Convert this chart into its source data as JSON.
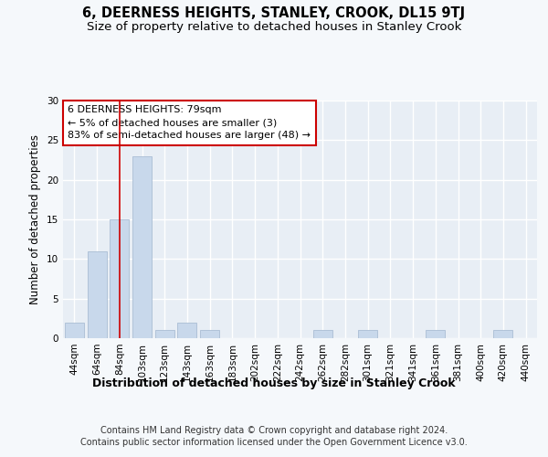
{
  "title": "6, DEERNESS HEIGHTS, STANLEY, CROOK, DL15 9TJ",
  "subtitle": "Size of property relative to detached houses in Stanley Crook",
  "xlabel": "Distribution of detached houses by size in Stanley Crook",
  "ylabel": "Number of detached properties",
  "bin_labels": [
    "44sqm",
    "64sqm",
    "84sqm",
    "103sqm",
    "123sqm",
    "143sqm",
    "163sqm",
    "183sqm",
    "202sqm",
    "222sqm",
    "242sqm",
    "262sqm",
    "282sqm",
    "301sqm",
    "321sqm",
    "341sqm",
    "361sqm",
    "381sqm",
    "400sqm",
    "420sqm",
    "440sqm"
  ],
  "bar_values": [
    2,
    11,
    15,
    23,
    1,
    2,
    1,
    0,
    0,
    0,
    0,
    1,
    0,
    1,
    0,
    0,
    1,
    0,
    0,
    1,
    0
  ],
  "bar_color": "#c8d8eb",
  "bar_edge_color": "#aabdd4",
  "red_line_x": 2.0,
  "ylim": [
    0,
    30
  ],
  "yticks": [
    0,
    5,
    10,
    15,
    20,
    25,
    30
  ],
  "annotation_title": "6 DEERNESS HEIGHTS: 79sqm",
  "annotation_line1": "← 5% of detached houses are smaller (3)",
  "annotation_line2": "83% of semi-detached houses are larger (48) →",
  "annotation_box_color": "#ffffff",
  "annotation_box_edge": "#cc0000",
  "footer_line1": "Contains HM Land Registry data © Crown copyright and database right 2024.",
  "footer_line2": "Contains public sector information licensed under the Open Government Licence v3.0.",
  "bg_color": "#f5f8fb",
  "plot_bg_color": "#e8eef5",
  "grid_color": "#ffffff",
  "title_fontsize": 10.5,
  "subtitle_fontsize": 9.5,
  "ylabel_fontsize": 8.5,
  "xlabel_fontsize": 9,
  "tick_fontsize": 7.5,
  "annotation_fontsize": 8,
  "footer_fontsize": 7
}
